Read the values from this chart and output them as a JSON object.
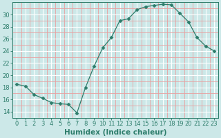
{
  "x": [
    0,
    1,
    2,
    3,
    4,
    5,
    6,
    7,
    8,
    9,
    10,
    11,
    12,
    13,
    14,
    15,
    16,
    17,
    18,
    19,
    20,
    21,
    22,
    23
  ],
  "y": [
    18.5,
    18.2,
    16.8,
    16.2,
    15.5,
    15.3,
    15.2,
    13.8,
    18.0,
    21.5,
    24.5,
    26.2,
    29.0,
    29.3,
    30.8,
    31.3,
    31.5,
    31.7,
    31.6,
    30.2,
    28.8,
    26.2,
    24.8,
    24.0
  ],
  "line_color": "#2d7d6b",
  "marker": "D",
  "marker_size": 2.5,
  "bg_color": "#cce8e8",
  "grid_major_color": "#ffffff",
  "grid_minor_color": "#e8a0a0",
  "xlabel": "Humidex (Indice chaleur)",
  "xlim": [
    -0.5,
    23.5
  ],
  "ylim": [
    13,
    32
  ],
  "yticks": [
    14,
    16,
    18,
    20,
    22,
    24,
    26,
    28,
    30
  ],
  "xticks": [
    0,
    1,
    2,
    3,
    4,
    5,
    6,
    7,
    8,
    9,
    10,
    11,
    12,
    13,
    14,
    15,
    16,
    17,
    18,
    19,
    20,
    21,
    22,
    23
  ],
  "tick_fontsize": 6,
  "xlabel_fontsize": 7.5
}
